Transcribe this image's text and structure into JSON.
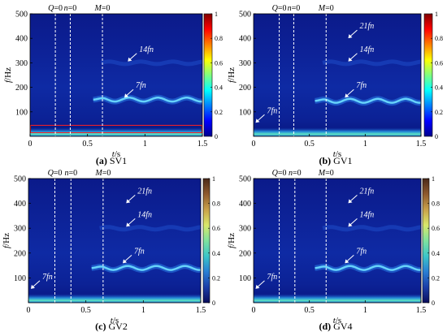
{
  "figure": {
    "colormaps": {
      "jet": [
        "#00008f",
        "#0000ff",
        "#0080ff",
        "#00ffff",
        "#80ff80",
        "#ffff00",
        "#ff8000",
        "#ff0000",
        "#800000"
      ],
      "turbo_dark": [
        "#0b0d5c",
        "#1b3ea8",
        "#2a7fd4",
        "#3cc6c9",
        "#7fe39e",
        "#d9e86a",
        "#c9a14a",
        "#8f5a2e",
        "#4a2a1a"
      ],
      "panel_bg": "#0a1a8c"
    },
    "line_color": "#ffffff",
    "red_box_color": "#ff2020"
  },
  "chart_data": [
    {
      "id": "a",
      "type": "heatmap",
      "caption_letter": "(a)",
      "caption_text": "SV1",
      "xlabel": "t/s",
      "ylabel": "f/Hz",
      "xlim": [
        0,
        1.5
      ],
      "ylim": [
        0,
        500
      ],
      "xticks": [
        0,
        0.5,
        1,
        1.5
      ],
      "xtick_labels": [
        "0",
        "0.5",
        "1",
        "1.5"
      ],
      "yticks": [
        100,
        200,
        300,
        400,
        500
      ],
      "ytick_labels": [
        "100",
        "200",
        "300",
        "400",
        "500"
      ],
      "colorbar_ticks": [
        0,
        0.2,
        0.4,
        0.6,
        0.8,
        1
      ],
      "colorbar_labels": [
        "0",
        "0.2",
        "0.4",
        "0.6",
        "0.8",
        "1"
      ],
      "colormap": "jet",
      "markers": [
        {
          "label": "Q=0",
          "t": 0.22
        },
        {
          "label": "n=0",
          "t": 0.35
        },
        {
          "label": "M=0",
          "t": 0.63
        }
      ],
      "annotations": [
        {
          "text": "14fn",
          "t": 0.95,
          "f": 345
        },
        {
          "text": "7fn",
          "t": 0.92,
          "f": 198
        }
      ],
      "ridges": [
        {
          "f_base": 150,
          "amp": 8,
          "t_start": 0.55,
          "t_end": 1.5
        }
      ],
      "low_band": true,
      "red_box": {
        "t0": 0.0,
        "t1": 1.5,
        "f0": 15,
        "f1": 45
      }
    },
    {
      "id": "b",
      "type": "heatmap",
      "caption_letter": "(b)",
      "caption_text": "GV1",
      "xlabel": "t/s",
      "ylabel": "f/Hz",
      "xlim": [
        0,
        1.5
      ],
      "ylim": [
        0,
        500
      ],
      "xticks": [
        0,
        0.5,
        1,
        1.5
      ],
      "xtick_labels": [
        "0",
        "0.5",
        "1",
        "1.5"
      ],
      "yticks": [
        100,
        200,
        300,
        400,
        500
      ],
      "ytick_labels": [
        "100",
        "200",
        "300",
        "400",
        "500"
      ],
      "colorbar_ticks": [
        0,
        0.2,
        0.4,
        0.6,
        0.8,
        1
      ],
      "colorbar_labels": [
        "0",
        "0.2",
        "0.4",
        "0.6",
        "0.8",
        "1"
      ],
      "colormap": "jet",
      "markers": [
        {
          "label": "Q=0",
          "t": 0.23
        },
        {
          "label": "n=0",
          "t": 0.36
        },
        {
          "label": "M=0",
          "t": 0.65
        }
      ],
      "annotations": [
        {
          "text": "21fn",
          "t": 0.95,
          "f": 440
        },
        {
          "text": "14fn",
          "t": 0.95,
          "f": 345
        },
        {
          "text": "7fn",
          "t": 0.92,
          "f": 198
        },
        {
          "text": "7fn",
          "t": 0.12,
          "f": 95
        }
      ],
      "ridges": [
        {
          "f_base": 145,
          "amp": 8,
          "t_start": 0.55,
          "t_end": 1.5
        }
      ],
      "low_band": true
    },
    {
      "id": "c",
      "type": "heatmap",
      "caption_letter": "(c)",
      "caption_text": "GV2",
      "xlabel": "t/s",
      "ylabel": "f/Hz",
      "xlim": [
        0,
        1.5
      ],
      "ylim": [
        0,
        500
      ],
      "xticks": [
        0,
        0.5,
        1,
        1.5
      ],
      "xtick_labels": [
        "0",
        "0.5",
        "1",
        "1.5"
      ],
      "yticks": [
        100,
        200,
        300,
        400,
        500
      ],
      "ytick_labels": [
        "100",
        "200",
        "300",
        "400",
        "500"
      ],
      "colorbar_ticks": [
        0,
        0.2,
        0.4,
        0.6,
        0.8,
        1
      ],
      "colorbar_labels": [
        "0",
        "0.2",
        "0.4",
        "0.6",
        "0.8",
        "1"
      ],
      "colormap": "turbo_dark",
      "markers": [
        {
          "label": "Q=0",
          "t": 0.23
        },
        {
          "label": "n=0",
          "t": 0.37
        },
        {
          "label": "M=0",
          "t": 0.65
        }
      ],
      "annotations": [
        {
          "text": "21fn",
          "t": 0.95,
          "f": 440
        },
        {
          "text": "14fn",
          "t": 0.95,
          "f": 345
        },
        {
          "text": "7fn",
          "t": 0.92,
          "f": 198
        },
        {
          "text": "7fn",
          "t": 0.12,
          "f": 95
        }
      ],
      "ridges": [
        {
          "f_base": 140,
          "amp": 8,
          "t_start": 0.55,
          "t_end": 1.5
        }
      ],
      "low_band": true
    },
    {
      "id": "d",
      "type": "heatmap",
      "caption_letter": "(d)",
      "caption_text": "GV4",
      "xlabel": "t/s",
      "ylabel": "f/Hz",
      "xlim": [
        0,
        1.5
      ],
      "ylim": [
        0,
        500
      ],
      "xticks": [
        0,
        0.5,
        1,
        1.5
      ],
      "xtick_labels": [
        "0",
        "0.5",
        "1",
        "1.5"
      ],
      "yticks": [
        100,
        200,
        300,
        400,
        500
      ],
      "ytick_labels": [
        "100",
        "200",
        "300",
        "400",
        "500"
      ],
      "colorbar_ticks": [
        0,
        0.2,
        0.4,
        0.6,
        0.8,
        1
      ],
      "colorbar_labels": [
        "0",
        "0.2",
        "0.4",
        "0.6",
        "0.8",
        "1"
      ],
      "colormap": "turbo_dark",
      "markers": [
        {
          "label": "Q=0",
          "t": 0.23
        },
        {
          "label": "n=0",
          "t": 0.37
        },
        {
          "label": "M=0",
          "t": 0.65
        }
      ],
      "annotations": [
        {
          "text": "21fn",
          "t": 0.95,
          "f": 440
        },
        {
          "text": "14fn",
          "t": 0.95,
          "f": 345
        },
        {
          "text": "7fn",
          "t": 0.92,
          "f": 198
        },
        {
          "text": "7fn",
          "t": 0.12,
          "f": 95
        }
      ],
      "ridges": [
        {
          "f_base": 140,
          "amp": 8,
          "t_start": 0.55,
          "t_end": 1.5
        }
      ],
      "low_band": true
    }
  ]
}
